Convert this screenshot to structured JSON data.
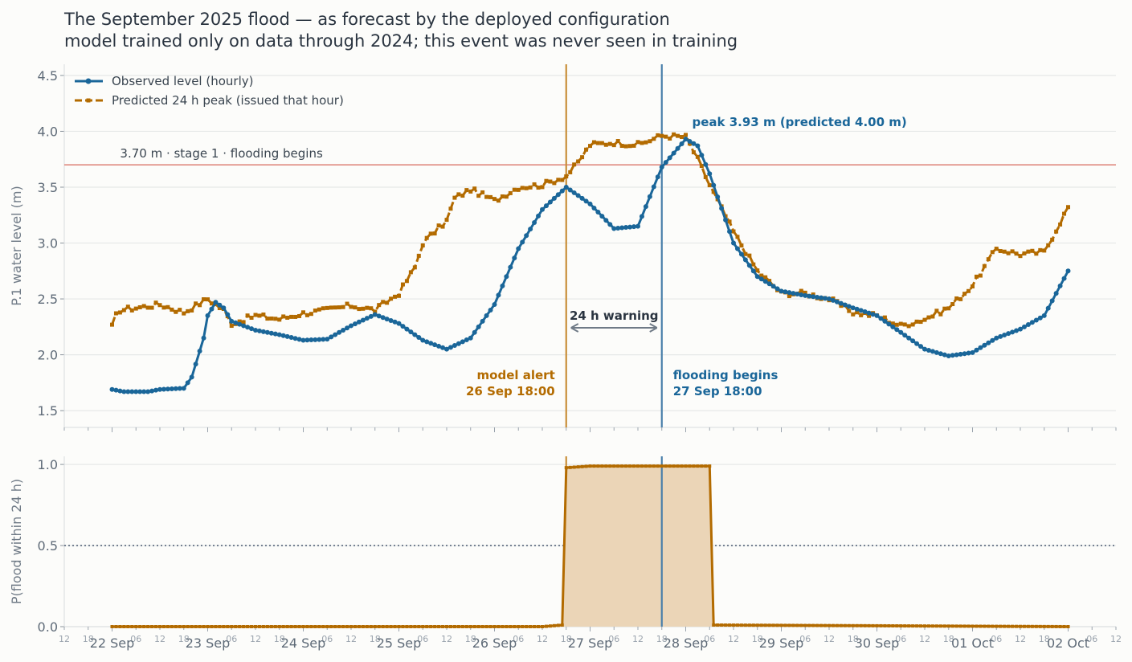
{
  "chart_data": {
    "type": "line",
    "title_line1": "The September 2025 flood — as forecast by the deployed configuration",
    "title_line2": "model trained only on data through 2024; this event was never seen in training",
    "colors": {
      "observed": "#1a6699",
      "predicted": "#b36b00",
      "threshold": "#e08a80",
      "threshold_text": "#c8554a",
      "alert_line": "#c98f3a",
      "flood_line": "#4a80aa",
      "arrow": "#6f7a86",
      "fill": "#ebd5b7"
    },
    "top_panel": {
      "ylabel": "P.1 water level (m)",
      "ylim": [
        1.35,
        4.6
      ],
      "yticks": [
        "1.5",
        "2.0",
        "2.5",
        "3.0",
        "3.5",
        "4.0",
        "4.5"
      ],
      "grid": true,
      "legend_position": "top-left",
      "legend": [
        "Observed level (hourly)",
        "Predicted 24 h peak (issued that hour)"
      ],
      "threshold": {
        "value": 3.7,
        "label": "3.70 m · stage 1 · flooding begins"
      },
      "observed_keypoints": [
        [
          "2025-09-22T00:00",
          1.69
        ],
        [
          "2025-09-22T03:00",
          1.67
        ],
        [
          "2025-09-22T09:00",
          1.67
        ],
        [
          "2025-09-22T12:00",
          1.69
        ],
        [
          "2025-09-22T18:00",
          1.7
        ],
        [
          "2025-09-22T20:00",
          1.8
        ],
        [
          "2025-09-22T23:00",
          2.15
        ],
        [
          "2025-09-23T00:00",
          2.35
        ],
        [
          "2025-09-23T02:00",
          2.47
        ],
        [
          "2025-09-23T04:00",
          2.42
        ],
        [
          "2025-09-23T06:00",
          2.3
        ],
        [
          "2025-09-23T12:00",
          2.22
        ],
        [
          "2025-09-23T18:00",
          2.18
        ],
        [
          "2025-09-24T00:00",
          2.13
        ],
        [
          "2025-09-24T06:00",
          2.14
        ],
        [
          "2025-09-24T12:00",
          2.26
        ],
        [
          "2025-09-24T18:00",
          2.36
        ],
        [
          "2025-09-25T00:00",
          2.28
        ],
        [
          "2025-09-25T06:00",
          2.13
        ],
        [
          "2025-09-25T12:00",
          2.05
        ],
        [
          "2025-09-25T18:00",
          2.15
        ],
        [
          "2025-09-26T00:00",
          2.45
        ],
        [
          "2025-09-26T06:00",
          2.95
        ],
        [
          "2025-09-26T12:00",
          3.3
        ],
        [
          "2025-09-26T18:00",
          3.5
        ],
        [
          "2025-09-27T00:00",
          3.35
        ],
        [
          "2025-09-27T06:00",
          3.13
        ],
        [
          "2025-09-27T12:00",
          3.15
        ],
        [
          "2025-09-27T18:00",
          3.68
        ],
        [
          "2025-09-28T00:00",
          3.93
        ],
        [
          "2025-09-28T03:00",
          3.87
        ],
        [
          "2025-09-28T06:00",
          3.62
        ],
        [
          "2025-09-28T12:00",
          3.0
        ],
        [
          "2025-09-28T18:00",
          2.7
        ],
        [
          "2025-09-29T00:00",
          2.57
        ],
        [
          "2025-09-29T06:00",
          2.53
        ],
        [
          "2025-09-29T12:00",
          2.5
        ],
        [
          "2025-09-29T18:00",
          2.42
        ],
        [
          "2025-09-30T00:00",
          2.35
        ],
        [
          "2025-09-30T06:00",
          2.2
        ],
        [
          "2025-09-30T12:00",
          2.05
        ],
        [
          "2025-09-30T18:00",
          1.99
        ],
        [
          "2025-10-01T00:00",
          2.02
        ],
        [
          "2025-10-01T06:00",
          2.15
        ],
        [
          "2025-10-01T12:00",
          2.23
        ],
        [
          "2025-10-01T18:00",
          2.35
        ],
        [
          "2025-10-02T00:00",
          2.75
        ]
      ],
      "predicted_keypoints": [
        [
          "2025-09-22T00:00",
          2.25
        ],
        [
          "2025-09-22T01:00",
          2.35
        ],
        [
          "2025-09-22T02:00",
          2.4
        ],
        [
          "2025-09-22T12:00",
          2.45
        ],
        [
          "2025-09-22T18:00",
          2.38
        ],
        [
          "2025-09-23T00:00",
          2.5
        ],
        [
          "2025-09-23T04:00",
          2.4
        ],
        [
          "2025-09-23T06:00",
          2.28
        ],
        [
          "2025-09-23T12:00",
          2.35
        ],
        [
          "2025-09-23T18:00",
          2.32
        ],
        [
          "2025-09-24T00:00",
          2.37
        ],
        [
          "2025-09-24T06:00",
          2.4
        ],
        [
          "2025-09-24T12:00",
          2.44
        ],
        [
          "2025-09-24T18:00",
          2.4
        ],
        [
          "2025-09-25T00:00",
          2.55
        ],
        [
          "2025-09-25T04:00",
          2.78
        ],
        [
          "2025-09-25T06:00",
          3.0
        ],
        [
          "2025-09-25T12:00",
          3.2
        ],
        [
          "2025-09-25T14:00",
          3.4
        ],
        [
          "2025-09-25T18:00",
          3.48
        ],
        [
          "2025-09-26T00:00",
          3.38
        ],
        [
          "2025-09-26T06:00",
          3.5
        ],
        [
          "2025-09-26T12:00",
          3.52
        ],
        [
          "2025-09-26T18:00",
          3.6
        ],
        [
          "2025-09-26T21:00",
          3.72
        ],
        [
          "2025-09-27T00:00",
          3.88
        ],
        [
          "2025-09-27T06:00",
          3.9
        ],
        [
          "2025-09-27T12:00",
          3.88
        ],
        [
          "2025-09-27T18:00",
          3.96
        ],
        [
          "2025-09-28T00:00",
          3.95
        ],
        [
          "2025-09-28T03:00",
          3.75
        ],
        [
          "2025-09-28T06:00",
          3.52
        ],
        [
          "2025-09-28T12:00",
          3.1
        ],
        [
          "2025-09-28T18:00",
          2.75
        ],
        [
          "2025-09-29T00:00",
          2.55
        ],
        [
          "2025-09-29T06:00",
          2.55
        ],
        [
          "2025-09-29T12:00",
          2.5
        ],
        [
          "2025-09-29T18:00",
          2.38
        ],
        [
          "2025-09-30T00:00",
          2.35
        ],
        [
          "2025-09-30T06:00",
          2.26
        ],
        [
          "2025-09-30T12:00",
          2.32
        ],
        [
          "2025-09-30T18:00",
          2.42
        ],
        [
          "2025-10-01T00:00",
          2.62
        ],
        [
          "2025-10-01T06:00",
          2.95
        ],
        [
          "2025-10-01T12:00",
          2.9
        ],
        [
          "2025-10-01T18:00",
          2.92
        ],
        [
          "2025-10-02T00:00",
          3.32
        ]
      ],
      "peak_annotation": "peak 3.93 m (predicted 4.00 m)",
      "alert_label": [
        "model alert",
        "26 Sep 18:00"
      ],
      "flood_label": [
        "flooding begins",
        "27 Sep 18:00"
      ],
      "warning_label": "24 h warning",
      "alert_time": "2025-09-26T18:00",
      "flood_time": "2025-09-27T18:00",
      "peak_time": "2025-09-28T00:00"
    },
    "bottom_panel": {
      "ylabel": "P(flood within 24 h)",
      "ylim": [
        0,
        1.05
      ],
      "yticks": [
        "0.0",
        "0.5",
        "1.0"
      ],
      "threshold": 0.5,
      "probability_keypoints": [
        [
          "2025-09-22T00:00",
          0.0
        ],
        [
          "2025-09-26T12:00",
          0.0
        ],
        [
          "2025-09-26T17:00",
          0.01
        ],
        [
          "2025-09-26T18:00",
          0.98
        ],
        [
          "2025-09-27T00:00",
          0.99
        ],
        [
          "2025-09-28T06:00",
          0.99
        ],
        [
          "2025-09-28T07:00",
          0.01
        ],
        [
          "2025-10-02T00:00",
          0.0
        ]
      ]
    },
    "x_axis": {
      "start": "2025-09-21T12:00",
      "end": "2025-10-02T12:00",
      "day_labels": [
        "22 Sep",
        "23 Sep",
        "24 Sep",
        "25 Sep",
        "26 Sep",
        "27 Sep",
        "28 Sep",
        "29 Sep",
        "30 Sep",
        "01 Oct",
        "02 Oct"
      ],
      "hour_labels": [
        "06",
        "12",
        "18"
      ]
    }
  }
}
